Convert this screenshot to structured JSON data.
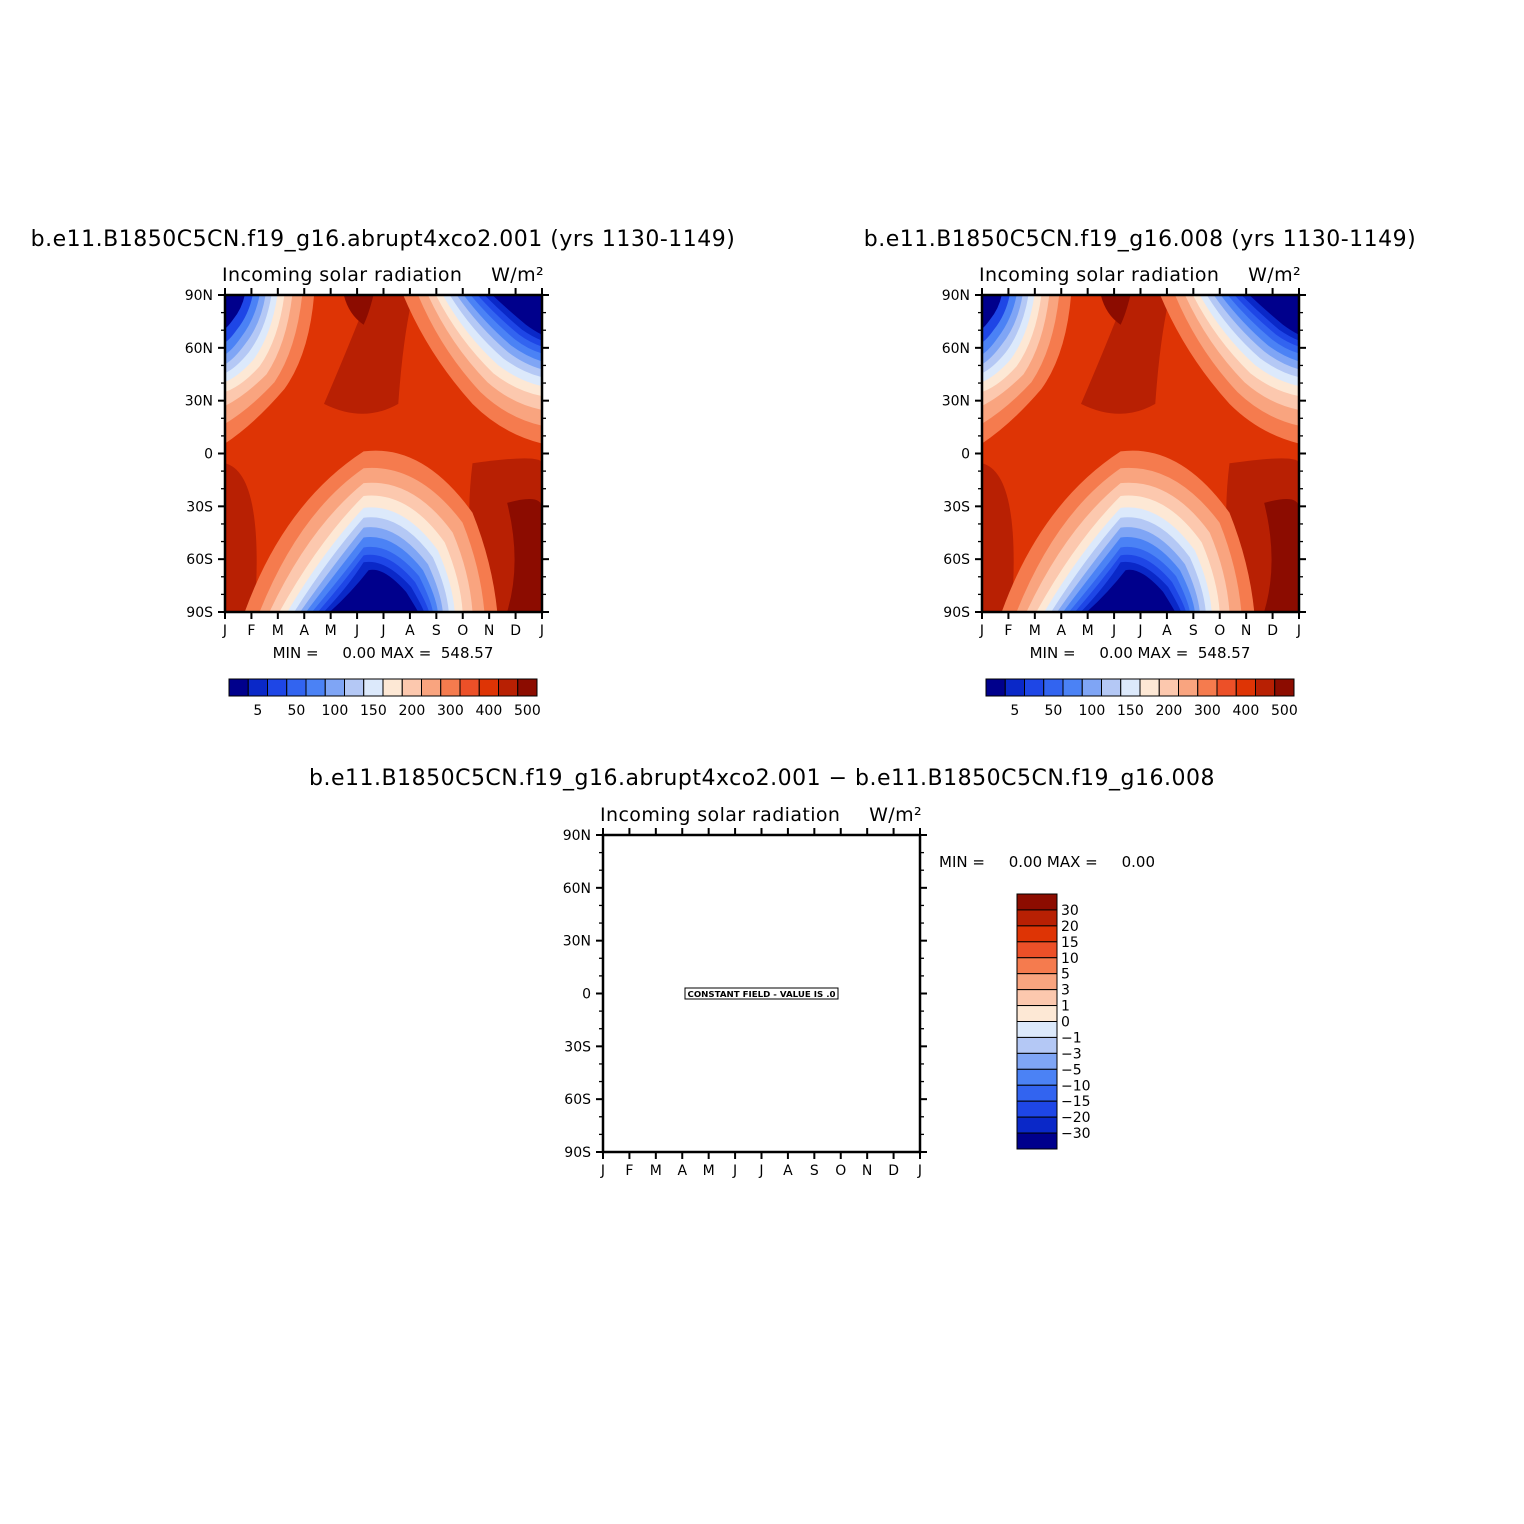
{
  "panels": [
    {
      "title": "b.e11.B1850C5CN.f19_g16.abrupt4xco2.001 (yrs 1130-1149)",
      "subtitle_left": "Incoming solar radiation",
      "subtitle_right": "W/m²",
      "minmax_text": "MIN =     0.00 MAX =  548.57"
    },
    {
      "title": "b.e11.B1850C5CN.f19_g16.008 (yrs 1130-1149)",
      "subtitle_left": "Incoming solar radiation",
      "subtitle_right": "W/m²",
      "minmax_text": "MIN =     0.00 MAX =  548.57"
    },
    {
      "title": "b.e11.B1850C5CN.f19_g16.abrupt4xco2.001 − b.e11.B1850C5CN.f19_g16.008",
      "subtitle_left": "Incoming solar radiation",
      "subtitle_right": "W/m²",
      "minmax_text": "MIN =     0.00 MAX =     0.00",
      "constant_label": "CONSTANT FIELD - VALUE IS .0"
    }
  ],
  "chart_data": [
    {
      "type": "heatmap",
      "variable": "Incoming solar radiation",
      "units": "W/m²",
      "x_ticks": [
        "J",
        "F",
        "M",
        "A",
        "M",
        "J",
        "J",
        "A",
        "S",
        "O",
        "N",
        "D",
        "J"
      ],
      "y_ticks": [
        "90N",
        "60N",
        "30N",
        "0",
        "30S",
        "60S",
        "90S"
      ],
      "min": 0.0,
      "max": 548.57,
      "colorbar_levels": [
        "5",
        "50",
        "100",
        "150",
        "200",
        "300",
        "400",
        "500"
      ],
      "colorbar_colors": [
        "#00008c",
        "#0a28c8",
        "#1e46e6",
        "#3264f0",
        "#4b82f5",
        "#7fa5f5",
        "#b4c8f5",
        "#dce9fb",
        "#fde8d5",
        "#fcc8ae",
        "#f9a47f",
        "#f57b4e",
        "#ec5028",
        "#de3405",
        "#b82003",
        "#8c0c00"
      ]
    },
    {
      "type": "heatmap",
      "variable": "Incoming solar radiation",
      "units": "W/m²",
      "x_ticks": [
        "J",
        "F",
        "M",
        "A",
        "M",
        "J",
        "J",
        "A",
        "S",
        "O",
        "N",
        "D",
        "J"
      ],
      "y_ticks": [
        "90N",
        "60N",
        "30N",
        "0",
        "30S",
        "60S",
        "90S"
      ],
      "min": 0.0,
      "max": 548.57,
      "colorbar_levels": [
        "5",
        "50",
        "100",
        "150",
        "200",
        "300",
        "400",
        "500"
      ],
      "colorbar_colors": [
        "#00008c",
        "#0a28c8",
        "#1e46e6",
        "#3264f0",
        "#4b82f5",
        "#7fa5f5",
        "#b4c8f5",
        "#dce9fb",
        "#fde8d5",
        "#fcc8ae",
        "#f9a47f",
        "#f57b4e",
        "#ec5028",
        "#de3405",
        "#b82003",
        "#8c0c00"
      ]
    },
    {
      "type": "heatmap",
      "variable": "Incoming solar radiation",
      "units": "W/m²",
      "x_ticks": [
        "J",
        "F",
        "M",
        "A",
        "M",
        "J",
        "J",
        "A",
        "S",
        "O",
        "N",
        "D",
        "J"
      ],
      "y_ticks": [
        "90N",
        "60N",
        "30N",
        "0",
        "30S",
        "60S",
        "90S"
      ],
      "min": 0.0,
      "max": 0.0,
      "colorbar_levels": [
        "30",
        "20",
        "15",
        "10",
        "5",
        "3",
        "1",
        "0",
        "−1",
        "−3",
        "−5",
        "−10",
        "−15",
        "−20",
        "−30"
      ],
      "colorbar_colors": [
        "#8c0c00",
        "#b82003",
        "#de3405",
        "#ec5028",
        "#f57b4e",
        "#f9a47f",
        "#fcc8ae",
        "#fde8d5",
        "#dce9fb",
        "#b4c8f5",
        "#7fa5f5",
        "#4b82f5",
        "#3264f0",
        "#1e46e6",
        "#0a28c8",
        "#00008c"
      ]
    }
  ]
}
